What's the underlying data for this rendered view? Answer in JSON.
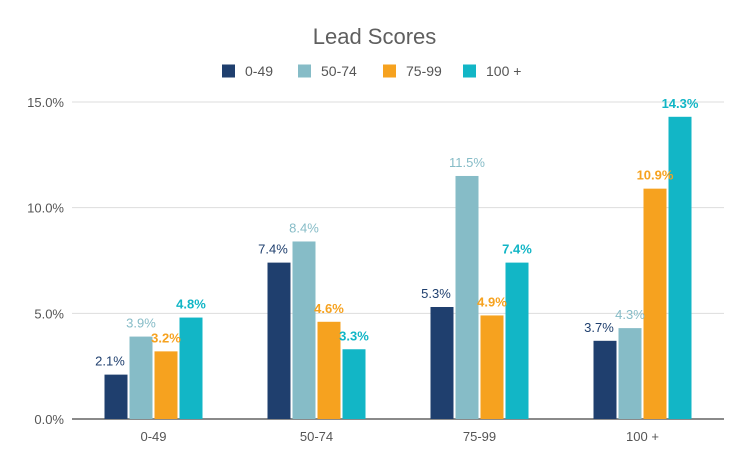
{
  "chart_data": {
    "type": "bar",
    "title": "Lead Scores",
    "xlabel": "",
    "ylabel": "",
    "categories": [
      "0-49",
      "50-74",
      "75-99",
      "100 +"
    ],
    "series": [
      {
        "name": "0-49",
        "color": "#1f3f6e",
        "values": [
          2.1,
          7.4,
          5.3,
          3.7
        ],
        "labels": [
          "2.1%",
          "7.4%",
          "5.3%",
          "3.7%"
        ]
      },
      {
        "name": "50-74",
        "color": "#86bcc7",
        "values": [
          3.9,
          8.4,
          11.5,
          4.3
        ],
        "labels": [
          "3.9%",
          "8.4%",
          "11.5%",
          "4.3%"
        ]
      },
      {
        "name": "75-99",
        "color": "#f6a21f",
        "values": [
          3.2,
          4.6,
          4.9,
          10.9
        ],
        "labels": [
          "3.2%",
          "4.6%",
          "4.9%",
          "10.9%"
        ]
      },
      {
        "name": "100 +",
        "color": "#12b6c6",
        "values": [
          4.8,
          3.3,
          7.4,
          14.3
        ],
        "labels": [
          "4.8%",
          "3.3%",
          "7.4%",
          "14.3%"
        ]
      }
    ],
    "ylim": [
      0,
      15
    ],
    "yticks": [
      0,
      5,
      10,
      15
    ],
    "ytick_labels": [
      "0.0%",
      "5.0%",
      "10.0%",
      "15.0%"
    ],
    "grid": true,
    "legend_position": "top-center",
    "label_colors": [
      "#1f3f6e",
      "#86bcc7",
      "#f6a21f",
      "#12b6c6"
    ]
  }
}
